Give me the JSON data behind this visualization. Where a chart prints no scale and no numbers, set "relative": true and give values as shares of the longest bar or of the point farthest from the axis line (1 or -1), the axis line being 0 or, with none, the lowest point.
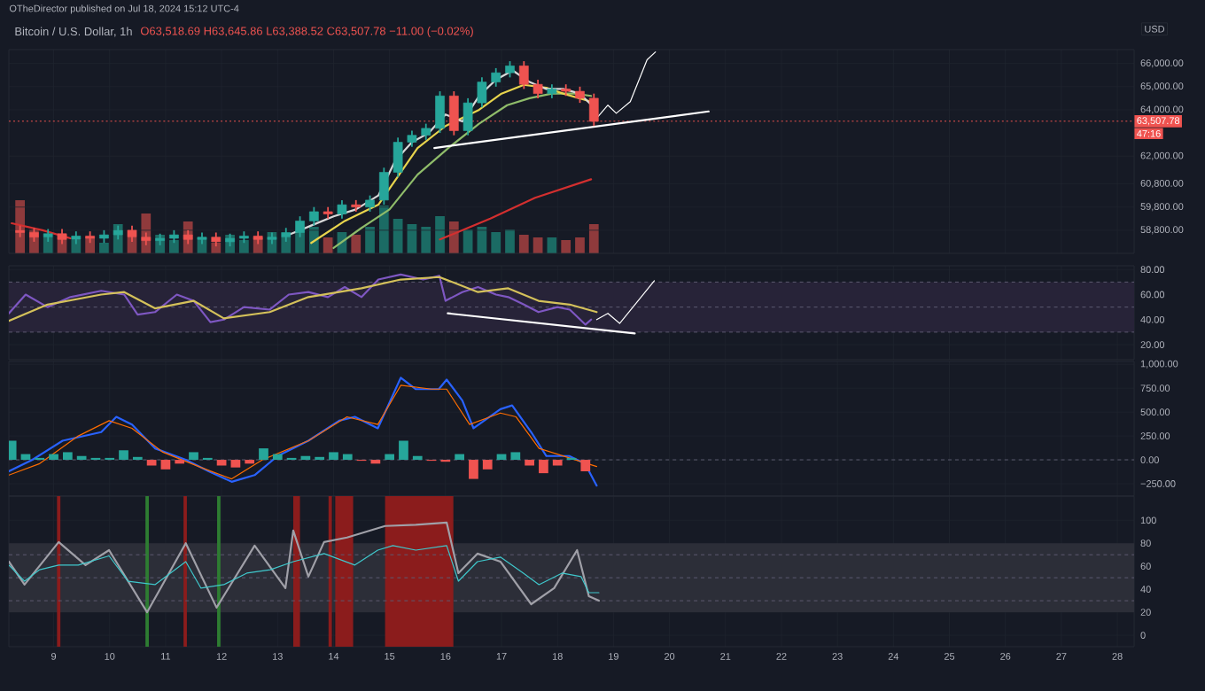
{
  "chart_data": [
    {
      "type": "candlestick",
      "title": "Bitcoin / U.S. Dollar, 1h",
      "subtitle": "O63,518.69 H63,645.86 L63,388.52 C63,507.78 −11.00 (−0.02%)",
      "ylabel": "USD",
      "annotations": [
        "OTheDirector published on Jul 18, 2024 15:12 UTC-4",
        "47:16"
      ],
      "x": [
        8.4,
        8.65,
        8.9,
        9.15,
        9.4,
        9.65,
        9.9,
        10.15,
        10.4,
        10.65,
        10.9,
        11.15,
        11.4,
        11.65,
        11.9,
        12.15,
        12.4,
        12.65,
        12.9,
        13.15,
        13.4,
        13.65,
        13.9,
        14.15,
        14.4,
        14.65,
        14.9,
        15.15,
        15.4,
        15.65,
        15.9,
        16.15,
        16.4,
        16.65,
        16.9,
        17.15,
        17.4,
        17.65,
        17.9,
        18.15,
        18.4,
        18.65
      ],
      "ohlc": [
        [
          58800,
          59000,
          58500,
          58700
        ],
        [
          58700,
          58900,
          58300,
          58500
        ],
        [
          58500,
          58850,
          58300,
          58650
        ],
        [
          58650,
          58850,
          58200,
          58400
        ],
        [
          58400,
          58750,
          58200,
          58550
        ],
        [
          58550,
          58750,
          58250,
          58450
        ],
        [
          58450,
          58800,
          58250,
          58600
        ],
        [
          58600,
          59000,
          58400,
          58800
        ],
        [
          58800,
          59000,
          58300,
          58500
        ],
        [
          58500,
          58700,
          58150,
          58350
        ],
        [
          58350,
          58650,
          58150,
          58450
        ],
        [
          58450,
          58800,
          58250,
          58600
        ],
        [
          58600,
          58800,
          58200,
          58400
        ],
        [
          58400,
          58700,
          58200,
          58500
        ],
        [
          58500,
          58700,
          58100,
          58300
        ],
        [
          58300,
          58650,
          58100,
          58450
        ],
        [
          58450,
          58750,
          58250,
          58550
        ],
        [
          58550,
          58750,
          58200,
          58400
        ],
        [
          58400,
          58700,
          58200,
          58500
        ],
        [
          58500,
          58900,
          58300,
          58700
        ],
        [
          58700,
          59400,
          58500,
          59200
        ],
        [
          59200,
          59800,
          59000,
          59600
        ],
        [
          59600,
          59800,
          59300,
          59500
        ],
        [
          59500,
          60100,
          59300,
          59900
        ],
        [
          59900,
          60100,
          59600,
          59800
        ],
        [
          59800,
          60300,
          59600,
          60100
        ],
        [
          60100,
          61500,
          59900,
          61300
        ],
        [
          61300,
          62800,
          61100,
          62600
        ],
        [
          62600,
          63100,
          62400,
          62900
        ],
        [
          62900,
          63400,
          62700,
          63200
        ],
        [
          63200,
          64800,
          63000,
          64600
        ],
        [
          64600,
          64800,
          62900,
          63100
        ],
        [
          63100,
          64500,
          62900,
          64300
        ],
        [
          64300,
          65400,
          64100,
          65200
        ],
        [
          65200,
          65800,
          65000,
          65600
        ],
        [
          65600,
          66100,
          65400,
          65900
        ],
        [
          65900,
          66100,
          64900,
          65100
        ],
        [
          65100,
          65300,
          64500,
          64700
        ],
        [
          64700,
          65100,
          64500,
          64900
        ],
        [
          64900,
          65100,
          64600,
          64800
        ],
        [
          64800,
          65000,
          64300,
          64500
        ],
        [
          64500,
          64700,
          63300,
          63500
        ]
      ],
      "colors": [
        "#ef5350",
        "#ef5350",
        "#26a69a",
        "#ef5350",
        "#26a69a",
        "#ef5350",
        "#26a69a",
        "#26a69a",
        "#ef5350",
        "#ef5350",
        "#26a69a",
        "#26a69a",
        "#ef5350",
        "#26a69a",
        "#ef5350",
        "#26a69a",
        "#26a69a",
        "#ef5350",
        "#26a69a",
        "#26a69a",
        "#26a69a",
        "#26a69a",
        "#ef5350",
        "#26a69a",
        "#ef5350",
        "#26a69a",
        "#26a69a",
        "#26a69a",
        "#26a69a",
        "#26a69a",
        "#26a69a",
        "#ef5350",
        "#26a69a",
        "#26a69a",
        "#26a69a",
        "#26a69a",
        "#ef5350",
        "#ef5350",
        "#26a69a",
        "#ef5350",
        "#ef5350",
        "#ef5350"
      ],
      "series": [
        {
          "type": "line",
          "color": "#d32f2f",
          "x": [
            8.25,
            8.8,
            9.3,
            12.0,
            15.9,
            16.8,
            17.6,
            18.6
          ],
          "values": [
            59100,
            58800,
            58450,
            null,
            58400,
            59300,
            60200,
            61000
          ]
        },
        {
          "type": "line",
          "color": "#8fbc6a",
          "x": [
            14.0,
            14.5,
            15.0,
            15.5,
            16.05,
            16.6,
            17.1,
            17.5,
            17.9,
            18.3,
            18.6
          ],
          "values": [
            58030,
            58900,
            59700,
            61200,
            62350,
            63400,
            64200,
            64500,
            64700,
            64700,
            64600
          ]
        },
        {
          "type": "line",
          "color": "#e8d44d",
          "x": [
            13.6,
            14.2,
            14.8,
            15.5,
            16.0,
            16.6,
            17.0,
            17.4,
            17.8,
            18.1,
            18.6
          ],
          "values": [
            58250,
            59200,
            59900,
            62350,
            63300,
            64000,
            64700,
            65080,
            64950,
            64700,
            64350
          ]
        },
        {
          "type": "line",
          "color": "#d9d9d9",
          "x": [
            13.2,
            13.6,
            14.0,
            14.4,
            14.8,
            15.1,
            15.4,
            15.7,
            16.0,
            16.3,
            16.6,
            16.9,
            17.2,
            17.5,
            17.8,
            18.1,
            18.4,
            18.65
          ],
          "values": [
            58600,
            59000,
            59400,
            59700,
            60300,
            61800,
            62600,
            63000,
            63800,
            63500,
            64600,
            65300,
            65700,
            65200,
            64900,
            64900,
            64700,
            64100
          ]
        },
        {
          "type": "line",
          "color": "#ffffff",
          "x": [
            15.8,
            20.7
          ],
          "values": [
            62350,
            63930
          ]
        },
        {
          "type": "line",
          "color": "#ffffff",
          "x": [
            18.7,
            18.9,
            19.05,
            19.3,
            19.6,
            19.75
          ],
          "values": [
            63640,
            64200,
            63850,
            64350,
            66160,
            66500
          ]
        }
      ],
      "xlim": [
        8.2,
        28.3
      ],
      "xticks": [
        9,
        10,
        11,
        12,
        13,
        14,
        15,
        16,
        17,
        18,
        19,
        20,
        21,
        22,
        23,
        24,
        25,
        26,
        27,
        28
      ],
      "ylim": [
        57800,
        66600
      ],
      "yticks": [
        {
          "value": 58800,
          "label": "58,800.00"
        },
        {
          "value": 59800,
          "label": "59,800.00"
        },
        {
          "value": 60800,
          "label": "60,800.00"
        },
        {
          "value": 62000,
          "label": "62,000.00"
        },
        {
          "value": 64000,
          "label": "64,000.00"
        },
        {
          "value": 65000,
          "label": "65,000.00"
        },
        {
          "value": 66000,
          "label": "66,000.00"
        }
      ],
      "ref_lines": [
        {
          "axis": "y",
          "value": 63507.78,
          "label": "63,507.78",
          "color": "#ef5350",
          "line_style": "dotted"
        }
      ],
      "grid": true,
      "tick_labels": "y"
    },
    {
      "type": "bar",
      "relative": true,
      "tick_labels": false,
      "xlim": [
        8.2,
        28.3
      ],
      "x": [
        8.4,
        8.65,
        8.9,
        9.15,
        9.4,
        9.65,
        9.9,
        10.15,
        10.4,
        10.65,
        10.9,
        11.15,
        11.4,
        11.65,
        11.9,
        12.15,
        12.4,
        12.65,
        12.9,
        13.15,
        13.4,
        13.65,
        13.9,
        14.15,
        14.4,
        14.65,
        14.9,
        15.15,
        15.4,
        15.65,
        15.9,
        16.15,
        16.4,
        16.65,
        16.9,
        17.15,
        17.4,
        17.65,
        17.9,
        18.15,
        18.4,
        18.65
      ],
      "values": [
        1.0,
        0.45,
        0.3,
        0.35,
        0.25,
        0.3,
        0.2,
        0.55,
        0.3,
        0.75,
        0.35,
        0.25,
        0.6,
        0.3,
        0.2,
        0.35,
        0.25,
        0.3,
        0.4,
        0.3,
        0.45,
        0.5,
        0.3,
        0.4,
        0.35,
        0.5,
        0.9,
        0.65,
        0.55,
        0.5,
        0.7,
        0.6,
        0.45,
        0.5,
        0.4,
        0.45,
        0.35,
        0.3,
        0.3,
        0.25,
        0.3,
        0.55
      ],
      "colors": [
        "#8f3a3c",
        "#8f3a3c",
        "#1b6b64",
        "#8f3a3c",
        "#1b6b64",
        "#8f3a3c",
        "#1b6b64",
        "#1b6b64",
        "#8f3a3c",
        "#8f3a3c",
        "#1b6b64",
        "#1b6b64",
        "#8f3a3c",
        "#1b6b64",
        "#8f3a3c",
        "#1b6b64",
        "#1b6b64",
        "#8f3a3c",
        "#1b6b64",
        "#1b6b64",
        "#1b6b64",
        "#1b6b64",
        "#8f3a3c",
        "#1b6b64",
        "#8f3a3c",
        "#1b6b64",
        "#1b6b64",
        "#1b6b64",
        "#1b6b64",
        "#1b6b64",
        "#1b6b64",
        "#8f3a3c",
        "#1b6b64",
        "#1b6b64",
        "#1b6b64",
        "#1b6b64",
        "#8f3a3c",
        "#8f3a3c",
        "#1b6b64",
        "#8f3a3c",
        "#8f3a3c",
        "#8f3a3c"
      ]
    },
    {
      "type": "line",
      "xlim": [
        8.2,
        28.3
      ],
      "xticks": [
        9,
        10,
        11,
        12,
        13,
        14,
        15,
        16,
        17,
        18,
        19,
        20,
        21,
        22,
        23,
        24,
        25,
        26,
        27,
        28
      ],
      "ylim": [
        8,
        83
      ],
      "yticks": [
        {
          "value": 20,
          "label": "20.00"
        },
        {
          "value": 40,
          "label": "40.00"
        },
        {
          "value": 60,
          "label": "60.00"
        },
        {
          "value": 80,
          "label": "80.00"
        }
      ],
      "bands": [
        {
          "axis": "y",
          "from": 30,
          "to": 70,
          "color": "#272338"
        }
      ],
      "ref_lines": [
        {
          "axis": "y",
          "value": 70,
          "color": "#5d5a70",
          "line_style": "dashed"
        },
        {
          "axis": "y",
          "value": 50,
          "color": "#5d5a70",
          "line_style": "dashed"
        },
        {
          "axis": "y",
          "value": 30,
          "color": "#5d5a70",
          "line_style": "dashed"
        }
      ],
      "series": [
        {
          "type": "line",
          "color": "#7e57c2",
          "x": [
            8.2,
            8.5,
            8.89,
            9.3,
            9.85,
            10.26,
            10.5,
            10.81,
            11.2,
            11.5,
            11.8,
            12.04,
            12.4,
            12.86,
            13.2,
            13.55,
            13.9,
            14.2,
            14.5,
            14.8,
            15.2,
            15.6,
            15.89,
            16.0,
            16.3,
            16.58,
            16.9,
            17.12,
            17.4,
            17.66,
            18.0,
            18.22,
            18.5,
            18.6
          ],
          "values": [
            45,
            60,
            50,
            58,
            63,
            60,
            44,
            46,
            60,
            55,
            38,
            40,
            50,
            48,
            60,
            62,
            58,
            66,
            58,
            72,
            76,
            72,
            75,
            55,
            62,
            66,
            60,
            58,
            52,
            46,
            50,
            48,
            36,
            40
          ]
        },
        {
          "type": "line",
          "color": "#d4c15a",
          "x": [
            8.2,
            8.89,
            9.85,
            10.26,
            10.81,
            11.5,
            12.04,
            12.86,
            13.55,
            14.5,
            15.2,
            15.89,
            16.58,
            17.12,
            17.66,
            18.22,
            18.7
          ],
          "values": [
            39,
            52,
            60,
            62,
            49,
            55,
            41,
            46,
            58,
            65,
            72,
            74,
            62,
            65,
            55,
            52,
            46
          ]
        },
        {
          "type": "line",
          "color": "#ffffff",
          "x": [
            16.04,
            19.38
          ],
          "values": [
            45,
            29
          ]
        },
        {
          "type": "line",
          "color": "#ffffff",
          "x": [
            18.7,
            18.9,
            19.11,
            19.73
          ],
          "values": [
            40,
            45,
            37,
            71
          ]
        }
      ],
      "grid": true,
      "tick_labels": "y"
    },
    {
      "type": "line",
      "xlim": [
        8.2,
        28.3
      ],
      "xticks": [
        9,
        10,
        11,
        12,
        13,
        14,
        15,
        16,
        17,
        18,
        19,
        20,
        21,
        22,
        23,
        24,
        25,
        26,
        27,
        28
      ],
      "ylim": [
        -380,
        1030
      ],
      "yticks": [
        {
          "value": -250,
          "label": "−250.00"
        },
        {
          "value": 0,
          "label": "0.00"
        },
        {
          "value": 250,
          "label": "250.00"
        },
        {
          "value": 500,
          "label": "500.00"
        },
        {
          "value": 750,
          "label": "750.00"
        },
        {
          "value": 1000,
          "label": "1,000.00"
        }
      ],
      "ref_lines": [
        {
          "axis": "y",
          "value": 0,
          "color": "#5d5a70",
          "line_style": "dashed"
        }
      ],
      "series": [
        {
          "type": "bar",
          "color": "#26a69a",
          "x": [
            8.25,
            8.5,
            8.75,
            9.0,
            9.25,
            9.5,
            9.75,
            10.0,
            10.25,
            10.5,
            11.5,
            11.75,
            12.75,
            13.0,
            13.25,
            13.5,
            13.75,
            14.0,
            14.25,
            15.0,
            15.25,
            15.5,
            16.25,
            17.0,
            17.25,
            18.25
          ],
          "values": [
            200,
            60,
            20,
            60,
            80,
            40,
            20,
            20,
            100,
            30,
            80,
            20,
            120,
            60,
            20,
            40,
            30,
            80,
            60,
            60,
            200,
            40,
            60,
            60,
            80,
            20
          ]
        },
        {
          "type": "bar",
          "color": "#ef5350",
          "x": [
            10.75,
            11.0,
            11.25,
            12.0,
            12.25,
            12.5,
            14.5,
            14.75,
            15.75,
            16.0,
            16.5,
            16.75,
            17.5,
            17.75,
            18.0,
            18.5
          ],
          "values": [
            -60,
            -100,
            -40,
            -60,
            -80,
            -40,
            -10,
            -40,
            -10,
            -20,
            -200,
            -100,
            -60,
            -140,
            -60,
            -120
          ]
        },
        {
          "type": "line",
          "color": "#2962ff",
          "x": [
            8.2,
            8.62,
            9.16,
            9.85,
            10.12,
            10.4,
            10.81,
            11.36,
            11.77,
            12.18,
            12.59,
            13.0,
            13.55,
            14.1,
            14.38,
            14.79,
            15.2,
            15.47,
            15.88,
            16.02,
            16.3,
            16.5,
            16.98,
            17.19,
            17.53,
            17.8,
            18.21,
            18.49,
            18.7
          ],
          "values": [
            -120,
            0,
            200,
            290,
            450,
            370,
            120,
            0,
            -120,
            -230,
            -160,
            40,
            200,
            410,
            450,
            330,
            860,
            740,
            740,
            840,
            620,
            330,
            530,
            570,
            290,
            40,
            40,
            -40,
            -270
          ]
        },
        {
          "type": "line",
          "color": "#ff6d00",
          "x": [
            8.2,
            8.75,
            9.44,
            9.99,
            10.4,
            10.95,
            11.63,
            12.18,
            12.73,
            13.55,
            14.24,
            14.79,
            15.2,
            15.75,
            16.02,
            16.43,
            16.98,
            17.26,
            17.67,
            18.21,
            18.7
          ],
          "values": [
            -160,
            -40,
            250,
            410,
            330,
            80,
            -80,
            -200,
            0,
            200,
            450,
            370,
            780,
            740,
            740,
            370,
            490,
            450,
            120,
            20,
            -70
          ]
        }
      ],
      "grid": true,
      "tick_labels": "y"
    },
    {
      "type": "line",
      "xlim": [
        8.2,
        28.3
      ],
      "xticks": [
        9,
        10,
        11,
        12,
        13,
        14,
        15,
        16,
        17,
        18,
        19,
        20,
        21,
        22,
        23,
        24,
        25,
        26,
        27,
        28
      ],
      "ylim": [
        -10,
        121
      ],
      "yticks": [
        0,
        20,
        40,
        60,
        80,
        100
      ],
      "bands": [
        {
          "axis": "y",
          "from": 20,
          "to": 80,
          "color": "#2c2e38"
        },
        {
          "axis": "x",
          "from": 9.06,
          "to": 9.12,
          "color": "#8b1c1c"
        },
        {
          "axis": "x",
          "from": 10.64,
          "to": 10.7,
          "color": "#2e7d32"
        },
        {
          "axis": "x",
          "from": 11.32,
          "to": 11.38,
          "color": "#8b1c1c"
        },
        {
          "axis": "x",
          "from": 11.92,
          "to": 11.98,
          "color": "#2e7d32"
        },
        {
          "axis": "x",
          "from": 13.28,
          "to": 13.4,
          "color": "#8b1c1c"
        },
        {
          "axis": "x",
          "from": 13.91,
          "to": 13.97,
          "color": "#8b1c1c"
        },
        {
          "axis": "x",
          "from": 14.03,
          "to": 14.35,
          "color": "#8b1c1c"
        },
        {
          "axis": "x",
          "from": 14.92,
          "to": 16.14,
          "color": "#8b1c1c"
        }
      ],
      "ref_lines": [
        {
          "axis": "y",
          "value": 70,
          "color": "#5d5a70",
          "line_style": "dashed"
        },
        {
          "axis": "y",
          "value": 50,
          "color": "#5d5a70",
          "line_style": "dashed"
        },
        {
          "axis": "y",
          "value": 30,
          "color": "#5d5a70",
          "line_style": "dashed"
        }
      ],
      "series": [
        {
          "type": "line",
          "color": "#a0a0a8",
          "x": [
            8.2,
            8.48,
            9.09,
            9.57,
            9.99,
            10.67,
            11.36,
            11.91,
            12.59,
            13.14,
            13.28,
            13.55,
            13.83,
            14.24,
            14.92,
            15.47,
            16.02,
            16.23,
            16.57,
            16.98,
            17.53,
            17.94,
            18.35,
            18.56,
            18.74
          ],
          "values": [
            64,
            44,
            81,
            61,
            74,
            20,
            80,
            24,
            78,
            41,
            91,
            51,
            81,
            85,
            95,
            96,
            98,
            54,
            71,
            64,
            27,
            41,
            74,
            34,
            30
          ]
        },
        {
          "type": "line",
          "color": "#3fc8cc",
          "x": [
            8.2,
            8.48,
            8.75,
            9.09,
            9.44,
            9.99,
            10.33,
            10.81,
            11.36,
            11.63,
            12.04,
            12.45,
            12.87,
            13.28,
            13.83,
            14.38,
            14.79,
            15.06,
            15.47,
            16.02,
            16.23,
            16.57,
            16.98,
            17.39,
            17.67,
            18.08,
            18.42,
            18.56,
            18.74
          ],
          "values": [
            61,
            47,
            57,
            61,
            61,
            69,
            47,
            44,
            64,
            41,
            44,
            54,
            57,
            64,
            71,
            61,
            74,
            78,
            74,
            78,
            47,
            64,
            68,
            54,
            44,
            54,
            51,
            37,
            37
          ]
        }
      ],
      "grid": true
    }
  ]
}
